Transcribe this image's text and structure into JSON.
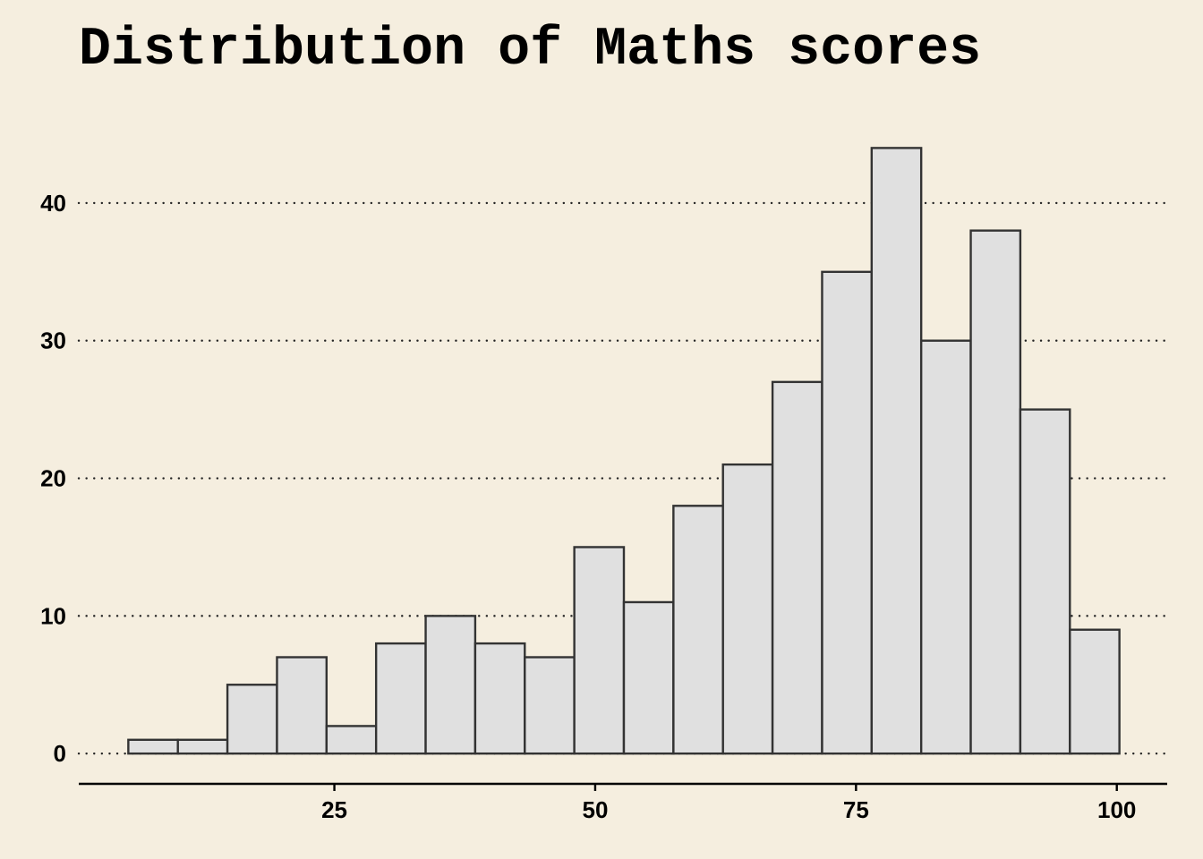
{
  "chart_data": {
    "type": "bar",
    "title": "Distribution of Maths scores",
    "xlabel": "",
    "ylabel": "",
    "bin_width": 4.75,
    "bins": [
      {
        "x0": 5.25,
        "x1": 10.0,
        "count": 1
      },
      {
        "x0": 10.0,
        "x1": 14.75,
        "count": 1
      },
      {
        "x0": 14.75,
        "x1": 19.5,
        "count": 5
      },
      {
        "x0": 19.5,
        "x1": 24.25,
        "count": 7
      },
      {
        "x0": 24.25,
        "x1": 29.0,
        "count": 2
      },
      {
        "x0": 29.0,
        "x1": 33.75,
        "count": 8
      },
      {
        "x0": 33.75,
        "x1": 38.5,
        "count": 10
      },
      {
        "x0": 38.5,
        "x1": 43.25,
        "count": 8
      },
      {
        "x0": 43.25,
        "x1": 48.0,
        "count": 7
      },
      {
        "x0": 48.0,
        "x1": 52.75,
        "count": 15
      },
      {
        "x0": 52.75,
        "x1": 57.5,
        "count": 11
      },
      {
        "x0": 57.5,
        "x1": 62.25,
        "count": 18
      },
      {
        "x0": 62.25,
        "x1": 67.0,
        "count": 21
      },
      {
        "x0": 67.0,
        "x1": 71.75,
        "count": 27
      },
      {
        "x0": 71.75,
        "x1": 76.5,
        "count": 35
      },
      {
        "x0": 76.5,
        "x1": 81.25,
        "count": 44
      },
      {
        "x0": 81.25,
        "x1": 86.0,
        "count": 30
      },
      {
        "x0": 86.0,
        "x1": 90.75,
        "count": 38
      },
      {
        "x0": 90.75,
        "x1": 95.5,
        "count": 25
      },
      {
        "x0": 95.5,
        "x1": 100.25,
        "count": 9
      }
    ],
    "x_ticks": [
      25,
      50,
      75,
      100
    ],
    "y_ticks": [
      0,
      10,
      20,
      30,
      40
    ],
    "xlim": [
      0.5,
      105
    ],
    "ylim": [
      -2.2,
      46.3
    ],
    "grid": "horizontal-dotted",
    "colors": {
      "background": "#f5eedf",
      "bar_fill": "#e0e0e0",
      "bar_stroke": "#333333",
      "grid": "#222222",
      "axis": "#000000"
    }
  }
}
